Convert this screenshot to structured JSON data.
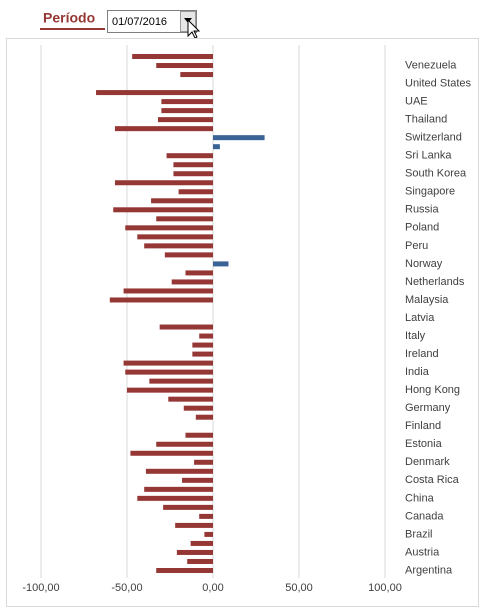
{
  "filter": {
    "label": "Período",
    "value": "01/07/2016"
  },
  "chart_data": {
    "type": "hbar",
    "categories": [
      null,
      "Venezuela",
      null,
      "United States",
      null,
      "UAE",
      null,
      "Thailand",
      null,
      "Switzerland",
      null,
      "Sri Lanka",
      null,
      "South Korea",
      null,
      "Singapore",
      null,
      "Russia",
      null,
      "Poland",
      null,
      "Peru",
      null,
      "Norway",
      null,
      "Netherlands",
      null,
      "Malaysia",
      null,
      "Latvia",
      null,
      "Italy",
      null,
      "Ireland",
      null,
      "India",
      null,
      "Hong Kong",
      null,
      "Germany",
      null,
      "Finland",
      null,
      "Estonia",
      null,
      "Denmark",
      null,
      "Costa Rica",
      null,
      "China",
      null,
      "Canada",
      null,
      "Brazil",
      null,
      "Austria",
      null,
      "Argentina"
    ],
    "values": [
      -47,
      -33,
      -19,
      0,
      -68,
      -30,
      -30,
      -32,
      -57,
      30,
      4,
      -27,
      -23,
      -23,
      -57,
      -20,
      -36,
      -58,
      -33,
      -51,
      -44,
      -40,
      -28,
      9,
      -16,
      -24,
      -52,
      -60,
      0,
      0,
      -31,
      -8,
      -12,
      -12,
      -52,
      -51,
      -37,
      -50,
      -26,
      -17,
      -10,
      0,
      -16,
      -33,
      -48,
      -11,
      -39,
      -18,
      -40,
      -44,
      -29,
      -8,
      -22,
      -5,
      -13,
      -21,
      -15,
      -33
    ],
    "color": "#953735",
    "positive_color": "#3b6496",
    "xlim": [
      -100,
      100
    ],
    "xticks": [
      {
        "value": -100,
        "label": "-100,00"
      },
      {
        "value": -50,
        "label": "-50,00"
      },
      {
        "value": 0,
        "label": "0,00"
      },
      {
        "value": 50,
        "label": "50,00"
      },
      {
        "value": 100,
        "label": "100,00"
      }
    ],
    "grid": true
  }
}
